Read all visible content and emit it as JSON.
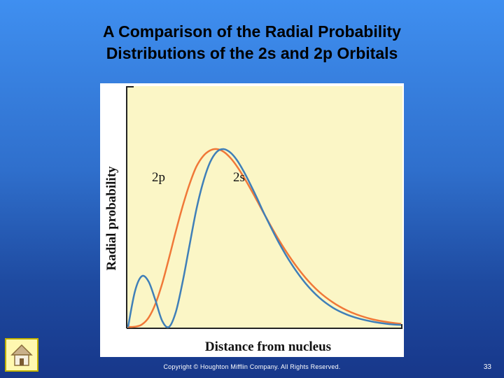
{
  "slide": {
    "title_line1": "A Comparison of the Radial Probability",
    "title_line2": "Distributions of the 2s and 2p Orbitals",
    "copyright": "Copyright © Houghton Mifflin Company. All Rights Reserved.",
    "page_number": "33",
    "home_icon": "home-icon"
  },
  "chart_data": {
    "type": "line",
    "title": "",
    "xlabel": "Distance from nucleus",
    "ylabel": "Radial probability",
    "grid": false,
    "background": "#fbf6c6",
    "x": [
      0,
      0.5,
      1,
      1.5,
      2,
      2.5,
      3,
      3.5,
      4,
      4.5,
      5,
      5.5,
      6,
      6.5,
      7,
      7.5,
      8,
      8.5,
      9,
      9.5,
      10,
      11,
      12,
      13,
      14,
      15,
      16,
      17,
      18,
      19,
      20
    ],
    "series": [
      {
        "name": "2p",
        "color": "#f07838",
        "values": [
          0.0,
          0.001,
          0.013,
          0.052,
          0.129,
          0.245,
          0.388,
          0.539,
          0.68,
          0.803,
          0.901,
          0.961,
          0.992,
          1.0,
          0.985,
          0.95,
          0.9,
          0.839,
          0.772,
          0.702,
          0.631,
          0.495,
          0.376,
          0.276,
          0.197,
          0.138,
          0.094,
          0.063,
          0.041,
          0.027,
          0.017
        ]
      },
      {
        "name": "2s",
        "color": "#3f7fb8",
        "values": [
          0.0,
          0.2,
          0.285,
          0.255,
          0.15,
          0.033,
          0.0,
          0.085,
          0.255,
          0.46,
          0.66,
          0.815,
          0.925,
          0.985,
          1.0,
          0.98,
          0.935,
          0.87,
          0.795,
          0.715,
          0.632,
          0.48,
          0.35,
          0.245,
          0.165,
          0.108,
          0.07,
          0.045,
          0.028,
          0.017,
          0.011
        ]
      }
    ],
    "series_labels": [
      "2p",
      "2s"
    ]
  }
}
